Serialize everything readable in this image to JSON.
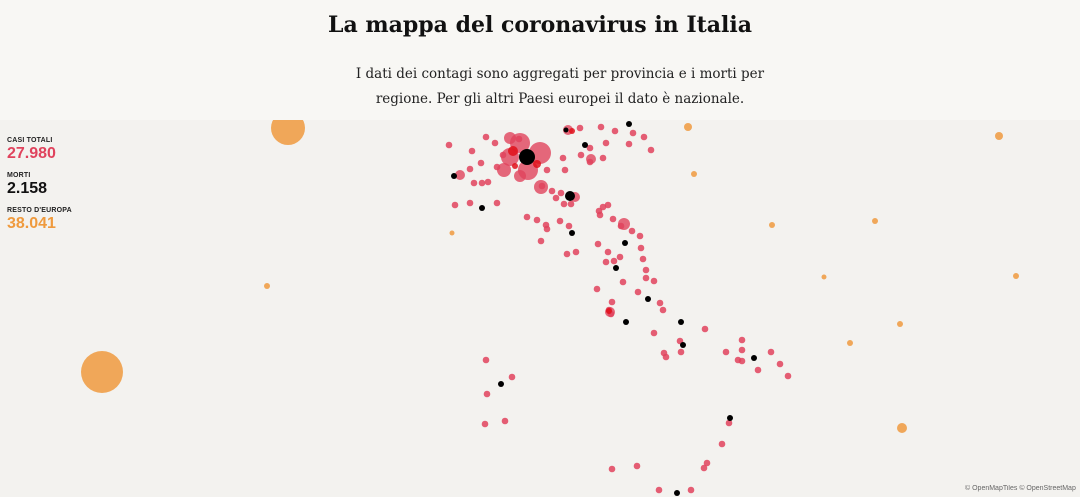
{
  "header": {
    "title": "La mappa del coronavirus in Italia",
    "subtitle": "I dati dei contagi sono aggregati per provincia e i morti per regione. Per gli altri Paesi europei il dato è nazionale."
  },
  "stats": [
    {
      "label": "CASI TOTALI",
      "value": "27.980",
      "color": "#e0435d"
    },
    {
      "label": "MORTI",
      "value": "2.158",
      "color": "#111111"
    },
    {
      "label": "RESTO D'EUROPA",
      "value": "38.041",
      "color": "#ef9a3d"
    }
  ],
  "colors": {
    "cases": "#e0435d",
    "cases_dark": "#e0101a",
    "deaths": "#000000",
    "europe": "#ee9a3e",
    "background": "#f3f2ef"
  },
  "attribution": {
    "openmaptiles": "© OpenMapTiles",
    "openstreetmap": "© OpenStreetMap"
  }
}
